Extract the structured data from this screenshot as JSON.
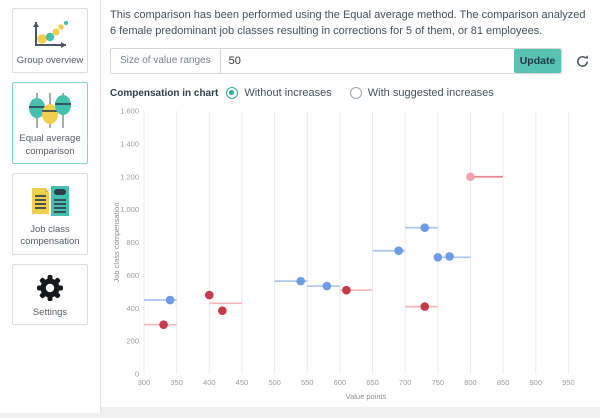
{
  "sidebar": {
    "items": [
      {
        "label": "Group overview",
        "selected": false
      },
      {
        "label": "Equal average comparison",
        "selected": true
      },
      {
        "label": "Job class compensation",
        "selected": false
      },
      {
        "label": "Settings",
        "selected": false
      }
    ]
  },
  "summary": {
    "text": "This comparison has been performed using the Equal average method. The comparison analyzed 6 female predominant job classes resulting in corrections for 5 of them, or 81 employees."
  },
  "controls": {
    "range_label": "Size of value ranges",
    "range_value": "50",
    "update_label": "Update",
    "compensation_label": "Compensation in chart",
    "radio_without": "Without increases",
    "radio_with": "With suggested increases",
    "selected_radio": "Without increases"
  },
  "colors": {
    "accent_teal": "#57c3b0",
    "selected_border": "#84d5c8",
    "icon_yellow": "#f0cf4e",
    "icon_teal": "#45bfae",
    "icon_dark": "#2e3e48",
    "blue_dot": "#6c9ce4",
    "blue_line": "#a8c6ef",
    "red_dot": "#c53b4a",
    "red_line": "#f2b8be",
    "pink_dot": "#f2a2ae",
    "pink_line": "#ea8490",
    "grid": "#ececec",
    "tick_text": "#9b9b9b"
  },
  "chart_data": {
    "type": "scatter",
    "title": "",
    "xlabel": "Value points",
    "ylabel": "Job class compensation",
    "xlim": [
      300,
      980
    ],
    "ylim": [
      0,
      1600
    ],
    "grid": "vertical",
    "legend_position": "none",
    "x_ticks": [
      300,
      350,
      400,
      450,
      500,
      550,
      600,
      650,
      700,
      750,
      800,
      850,
      900,
      950
    ],
    "y_ticks": [
      0,
      200,
      400,
      600,
      800,
      1000,
      1200,
      1400,
      1600
    ],
    "y_tick_labels": [
      "0",
      "200",
      "400",
      "600",
      "800",
      "1.000",
      "1.200",
      "1.400",
      "1.600"
    ],
    "series": [
      {
        "name": "blue",
        "dot_color": "#6c9ce4",
        "line_color": "#a8c6ef",
        "points": [
          {
            "x": 340,
            "y": 450
          },
          {
            "x": 540,
            "y": 565
          },
          {
            "x": 580,
            "y": 535
          },
          {
            "x": 690,
            "y": 750
          },
          {
            "x": 730,
            "y": 890
          },
          {
            "x": 750,
            "y": 710
          },
          {
            "x": 768,
            "y": 715
          }
        ],
        "ranges": [
          {
            "x1": 300,
            "x2": 350,
            "y": 450
          },
          {
            "x1": 500,
            "x2": 550,
            "y": 565
          },
          {
            "x1": 550,
            "x2": 600,
            "y": 535
          },
          {
            "x1": 650,
            "x2": 700,
            "y": 750
          },
          {
            "x1": 700,
            "x2": 750,
            "y": 890
          },
          {
            "x1": 750,
            "x2": 800,
            "y": 710
          }
        ]
      },
      {
        "name": "red",
        "dot_color": "#c53b4a",
        "line_color": "#f2b8be",
        "points": [
          {
            "x": 330,
            "y": 300
          },
          {
            "x": 400,
            "y": 480
          },
          {
            "x": 420,
            "y": 385
          },
          {
            "x": 610,
            "y": 510
          },
          {
            "x": 730,
            "y": 410
          }
        ],
        "ranges": [
          {
            "x1": 300,
            "x2": 350,
            "y": 300
          },
          {
            "x1": 400,
            "x2": 450,
            "y": 430
          },
          {
            "x1": 600,
            "x2": 650,
            "y": 510
          },
          {
            "x1": 700,
            "x2": 750,
            "y": 410
          }
        ]
      },
      {
        "name": "pink",
        "dot_color": "#f2a2ae",
        "line_color": "#ea8490",
        "points": [
          {
            "x": 800,
            "y": 1200
          }
        ],
        "ranges": [
          {
            "x1": 800,
            "x2": 850,
            "y": 1200
          }
        ]
      }
    ]
  }
}
